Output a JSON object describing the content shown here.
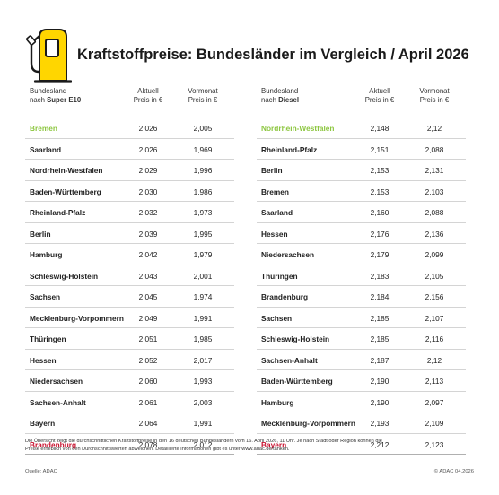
{
  "header": {
    "title": "Kraftstoffpreise: Bundesländer im Vergleich / April 2026",
    "icon": "fuel-pump-icon",
    "icon_colors": {
      "accent": "#ffd600",
      "stroke": "#1a1a1a"
    }
  },
  "colors": {
    "cheapest": "#8cc63f",
    "most_expensive": "#c8102e"
  },
  "super_e10": {
    "header": {
      "region_line1": "Bundesland",
      "region_prefix": "nach ",
      "region_fuel": "Super E10",
      "current_line1": "Aktuell",
      "current_line2": "Preis in €",
      "previous_line1": "Vormonat",
      "previous_line2": "Preis in €"
    },
    "rows": [
      {
        "region": "Bremen",
        "current": "2,026",
        "previous": "2,005"
      },
      {
        "region": "Saarland",
        "current": "2,026",
        "previous": "1,969"
      },
      {
        "region": "Nordrhein-Westfalen",
        "current": "2,029",
        "previous": "1,996"
      },
      {
        "region": "Baden-Württemberg",
        "current": "2,030",
        "previous": "1,986"
      },
      {
        "region": "Rheinland-Pfalz",
        "current": "2,032",
        "previous": "1,973"
      },
      {
        "region": "Berlin",
        "current": "2,039",
        "previous": "1,995"
      },
      {
        "region": "Hamburg",
        "current": "2,042",
        "previous": "1,979"
      },
      {
        "region": "Schleswig-Holstein",
        "current": "2,043",
        "previous": "2,001"
      },
      {
        "region": "Sachsen",
        "current": "2,045",
        "previous": "1,974"
      },
      {
        "region": "Mecklenburg-Vorpommern",
        "current": "2,049",
        "previous": "1,991"
      },
      {
        "region": "Thüringen",
        "current": "2,051",
        "previous": "1,985"
      },
      {
        "region": "Hessen",
        "current": "2,052",
        "previous": "2,017"
      },
      {
        "region": "Niedersachsen",
        "current": "2,060",
        "previous": "1,993"
      },
      {
        "region": "Sachsen-Anhalt",
        "current": "2,061",
        "previous": "2,003"
      },
      {
        "region": "Bayern",
        "current": "2,064",
        "previous": "1,991"
      },
      {
        "region": "Brandenburg",
        "current": "2,078",
        "previous": "2,012"
      }
    ]
  },
  "diesel": {
    "header": {
      "region_line1": "Bundesland",
      "region_prefix": "nach ",
      "region_fuel": "Diesel",
      "current_line1": "Aktuell",
      "current_line2": "Preis in €",
      "previous_line1": "Vormonat",
      "previous_line2": "Preis in €"
    },
    "rows": [
      {
        "region": "Nordrhein-Westfalen",
        "current": "2,148",
        "previous": "2,12"
      },
      {
        "region": "Rheinland-Pfalz",
        "current": "2,151",
        "previous": "2,088"
      },
      {
        "region": "Berlin",
        "current": "2,153",
        "previous": "2,131"
      },
      {
        "region": "Bremen",
        "current": "2,153",
        "previous": "2,103"
      },
      {
        "region": "Saarland",
        "current": "2,160",
        "previous": "2,088"
      },
      {
        "region": "Hessen",
        "current": "2,176",
        "previous": "2,136"
      },
      {
        "region": "Niedersachsen",
        "current": "2,179",
        "previous": "2,099"
      },
      {
        "region": "Thüringen",
        "current": "2,183",
        "previous": "2,105"
      },
      {
        "region": "Brandenburg",
        "current": "2,184",
        "previous": "2,156"
      },
      {
        "region": "Sachsen",
        "current": "2,185",
        "previous": "2,107"
      },
      {
        "region": "Schleswig-Holstein",
        "current": "2,185",
        "previous": "2,116"
      },
      {
        "region": "Sachsen-Anhalt",
        "current": "2,187",
        "previous": "2,12"
      },
      {
        "region": "Baden-Württemberg",
        "current": "2,190",
        "previous": "2,113"
      },
      {
        "region": "Hamburg",
        "current": "2,190",
        "previous": "2,097"
      },
      {
        "region": "Mecklenburg-Vorpommern",
        "current": "2,193",
        "previous": "2,109"
      },
      {
        "region": "Bayern",
        "current": "2,212",
        "previous": "2,123"
      }
    ]
  },
  "footer": {
    "note_line1": "Die Übersicht zeigt die durchschnittlichen Kraftstoffpreise in den 16 deutschen Bundesländern vom 16. April 2026, 11 Uhr. Je nach Stadt oder Region können die",
    "note_line2": "Preise erheblich von den Durchschnittswerten abweichen. Detaillierte Informationen gibt es unter www.adac.de/tanken.",
    "source": "Quelle: ADAC",
    "copyright": "© ADAC 04.2026"
  }
}
